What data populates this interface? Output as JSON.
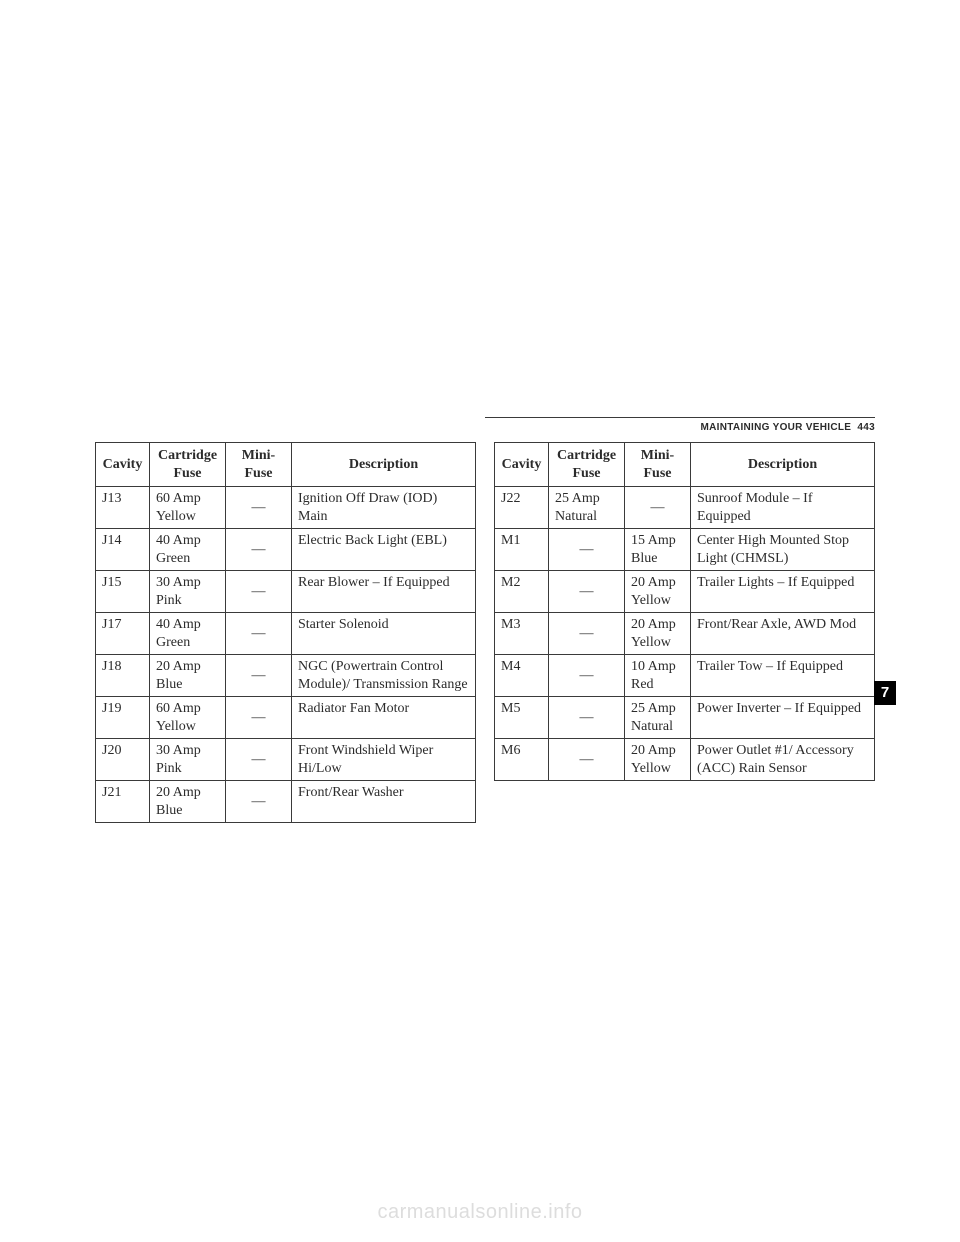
{
  "header": {
    "section": "MAINTAINING YOUR VEHICLE",
    "page": "443"
  },
  "side_tab": "7",
  "watermark": "carmanualsonline.info",
  "table_header": {
    "cavity": "Cavity",
    "cartridge": "Cartridge Fuse",
    "mini": "Mini-Fuse",
    "desc": "Description"
  },
  "left_rows": [
    {
      "cavity": "J13",
      "cartridge": "60 Amp Yellow",
      "mini": "—",
      "desc": "Ignition Off Draw (IOD) Main"
    },
    {
      "cavity": "J14",
      "cartridge": "40 Amp Green",
      "mini": "—",
      "desc": "Electric Back Light (EBL)"
    },
    {
      "cavity": "J15",
      "cartridge": "30 Amp Pink",
      "mini": "—",
      "desc": "Rear Blower – If Equipped"
    },
    {
      "cavity": "J17",
      "cartridge": "40 Amp Green",
      "mini": "—",
      "desc": "Starter Solenoid"
    },
    {
      "cavity": "J18",
      "cartridge": "20 Amp Blue",
      "mini": "—",
      "desc": "NGC (Powertrain Control Module)/ Transmission Range"
    },
    {
      "cavity": "J19",
      "cartridge": "60 Amp Yellow",
      "mini": "—",
      "desc": "Radiator Fan Motor"
    },
    {
      "cavity": "J20",
      "cartridge": "30 Amp Pink",
      "mini": "—",
      "desc": "Front Windshield Wiper Hi/Low"
    },
    {
      "cavity": "J21",
      "cartridge": "20 Amp Blue",
      "mini": "—",
      "desc": "Front/Rear Washer"
    }
  ],
  "right_rows": [
    {
      "cavity": "J22",
      "cartridge": "25 Amp Natural",
      "mini": "—",
      "desc": "Sunroof Module – If Equipped"
    },
    {
      "cavity": "M1",
      "cartridge": "—",
      "mini": "15 Amp Blue",
      "desc": "Center High Mounted Stop Light (CHMSL)"
    },
    {
      "cavity": "M2",
      "cartridge": "—",
      "mini": "20 Amp Yellow",
      "desc": "Trailer Lights – If Equipped"
    },
    {
      "cavity": "M3",
      "cartridge": "—",
      "mini": "20 Amp Yellow",
      "desc": "Front/Rear Axle, AWD Mod"
    },
    {
      "cavity": "M4",
      "cartridge": "—",
      "mini": "10 Amp Red",
      "desc": "Trailer Tow – If Equipped"
    },
    {
      "cavity": "M5",
      "cartridge": "—",
      "mini": "25 Amp Natural",
      "desc": "Power Inverter – If Equipped"
    },
    {
      "cavity": "M6",
      "cartridge": "—",
      "mini": "20 Amp Yellow",
      "desc": "Power Outlet #1/ Accessory (ACC) Rain Sensor"
    }
  ]
}
